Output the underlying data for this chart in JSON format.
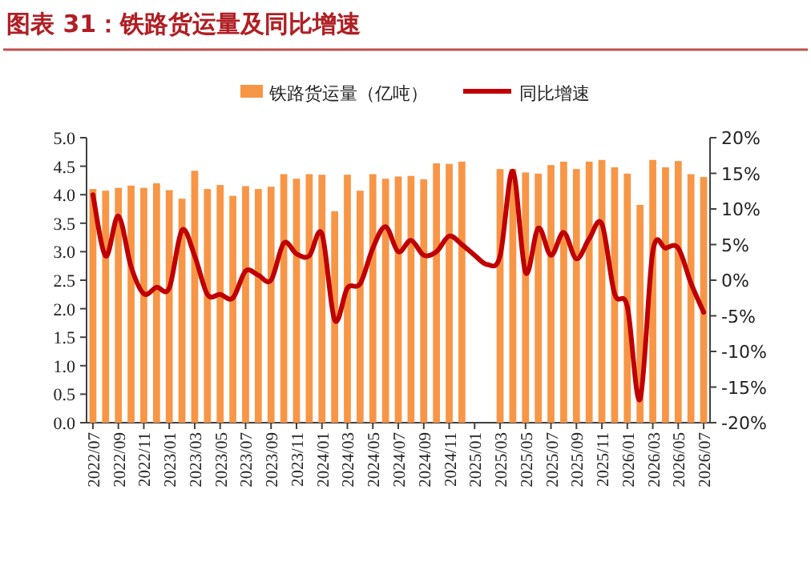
{
  "chart_data": {
    "type": "bar",
    "title": "图表 31：铁路货运量及同比增速",
    "categories": [
      "2022/07",
      null,
      "2022/09",
      null,
      "2022/11",
      null,
      "2023/01",
      null,
      "2023/03",
      null,
      "2023/05",
      null,
      "2023/07",
      null,
      "2023/09",
      null,
      "2023/11",
      null,
      "2024/01",
      null,
      "2024/03",
      null,
      "2024/05",
      null,
      "2024/07",
      null,
      "2024/09",
      null,
      "2024/11",
      null,
      "2025/01",
      null,
      "2025/03",
      null,
      "2025/05",
      null,
      "2025/07",
      null,
      "2025/09",
      null,
      "2025/11",
      null,
      "2026/01",
      null,
      "2026/03",
      null,
      "2026/05",
      null,
      "2026/07"
    ],
    "series": [
      {
        "name": "铁路货运量（亿吨）",
        "color": "#f79646",
        "values": [
          4.1,
          4.07,
          4.12,
          4.16,
          4.12,
          4.2,
          4.08,
          3.93,
          4.42,
          4.1,
          4.17,
          3.98,
          4.15,
          4.1,
          4.14,
          4.36,
          4.28,
          4.36,
          4.35,
          3.71,
          4.35,
          4.07,
          4.36,
          4.28,
          4.32,
          4.33,
          4.27,
          4.55,
          4.54,
          4.58,
          null,
          null,
          4.45,
          4.45,
          4.39,
          4.37,
          4.52,
          4.58,
          4.45,
          4.58,
          4.61,
          4.48,
          4.37,
          3.82,
          4.61,
          4.48,
          4.59,
          4.36,
          4.31
        ]
      },
      {
        "name": "同比增速",
        "type": "line",
        "axis": "y2",
        "color": "#c00000",
        "values": [
          12.0,
          3.4,
          9.0,
          1.9,
          -1.9,
          -1.0,
          -1.1,
          7.0,
          3.4,
          -2.0,
          -2.0,
          -2.5,
          1.3,
          0.7,
          0.0,
          5.2,
          3.7,
          3.4,
          6.5,
          -5.6,
          -1.1,
          -0.5,
          4.5,
          7.5,
          4.0,
          5.6,
          3.5,
          4.0,
          6.2,
          5.0,
          3.5,
          2.2,
          3.4,
          15.3,
          1.1,
          7.3,
          3.5,
          6.7,
          3.0,
          5.8,
          7.9,
          -1.9,
          -3.7,
          -16.7,
          4.0,
          4.5,
          4.5,
          -0.4,
          -4.5
        ]
      }
    ],
    "ylim": [
      0,
      5
    ],
    "yticks": [
      {
        "value": 0,
        "label": "0.0"
      },
      {
        "value": 0.5,
        "label": "0.5"
      },
      {
        "value": 1,
        "label": "1.0"
      },
      {
        "value": 1.5,
        "label": "1.5"
      },
      {
        "value": 2,
        "label": "2.0"
      },
      {
        "value": 2.5,
        "label": "2.5"
      },
      {
        "value": 3,
        "label": "3.0"
      },
      {
        "value": 3.5,
        "label": "3.5"
      },
      {
        "value": 4,
        "label": "4.0"
      },
      {
        "value": 4.5,
        "label": "4.5"
      },
      {
        "value": 5,
        "label": "5.0"
      }
    ],
    "y2lim": [
      -20,
      20
    ],
    "y2ticks": [
      {
        "value": -20,
        "label": "-20%"
      },
      {
        "value": -15,
        "label": "-15%"
      },
      {
        "value": -10,
        "label": "-10%"
      },
      {
        "value": -5,
        "label": "-5%"
      },
      {
        "value": 0,
        "label": "0%"
      },
      {
        "value": 5,
        "label": "5%"
      },
      {
        "value": 10,
        "label": "10%"
      },
      {
        "value": 15,
        "label": "15%"
      },
      {
        "value": 20,
        "label": "20%"
      }
    ],
    "legend": "top"
  }
}
